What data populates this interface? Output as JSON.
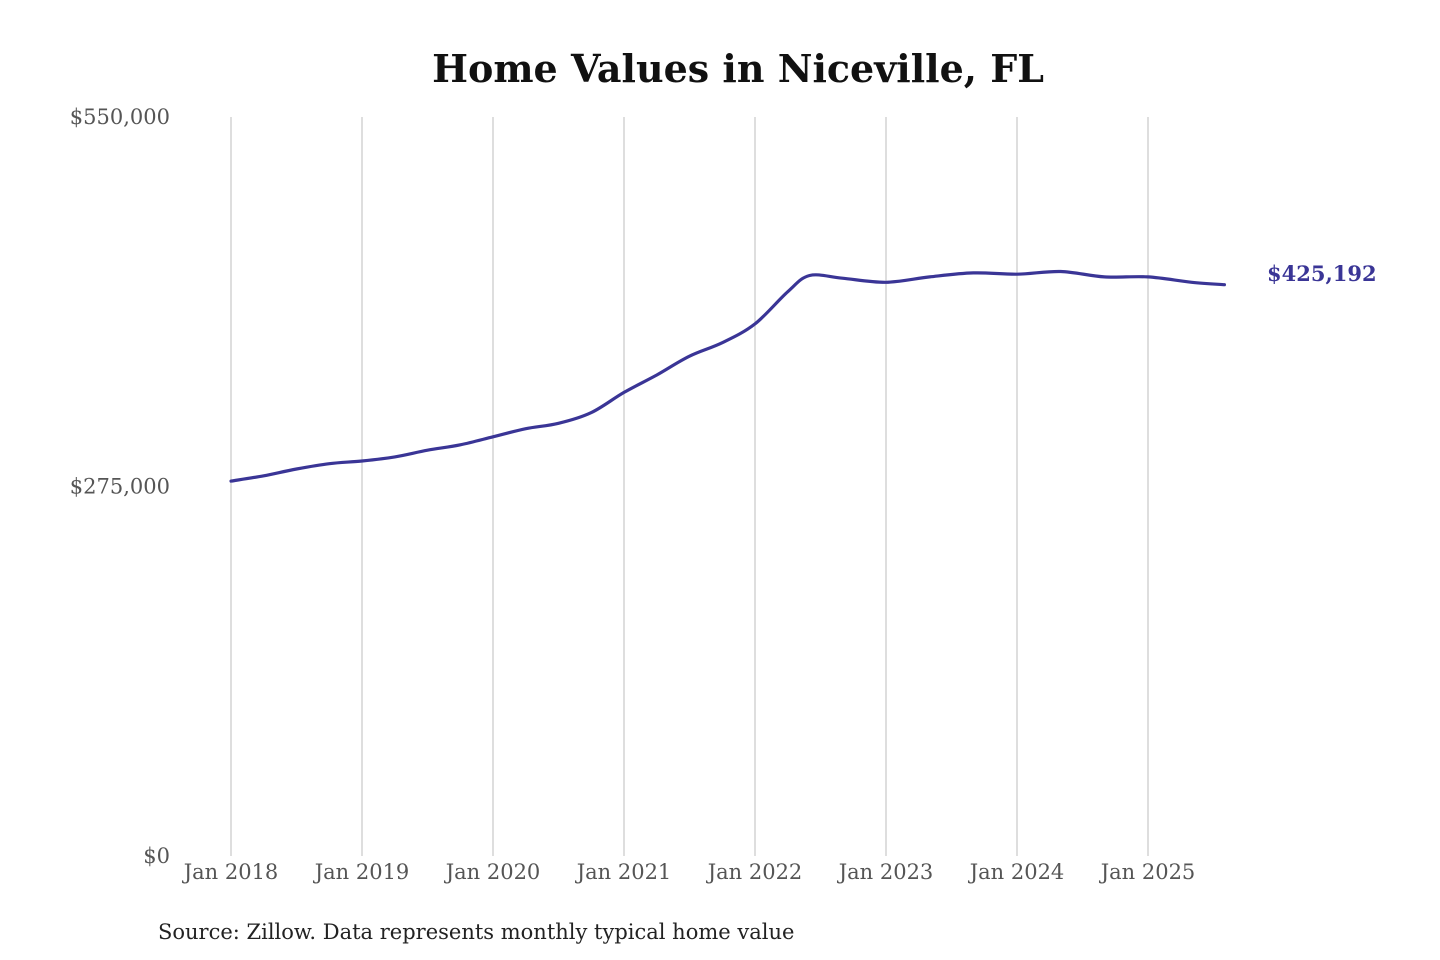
{
  "chart_data": {
    "type": "line",
    "title": "Home Values in Niceville, FL",
    "xlabel": "",
    "ylabel": "",
    "ylim": [
      0,
      550000
    ],
    "y_ticks": [
      {
        "value": 0,
        "label": "$0"
      },
      {
        "value": 275000,
        "label": "$275,000"
      },
      {
        "value": 550000,
        "label": "$550,000"
      }
    ],
    "x_ticks": [
      {
        "value": "2018-01",
        "label": "Jan 2018"
      },
      {
        "value": "2019-01",
        "label": "Jan 2019"
      },
      {
        "value": "2020-01",
        "label": "Jan 2020"
      },
      {
        "value": "2021-01",
        "label": "Jan 2021"
      },
      {
        "value": "2022-01",
        "label": "Jan 2022"
      },
      {
        "value": "2023-01",
        "label": "Jan 2023"
      },
      {
        "value": "2024-01",
        "label": "Jan 2024"
      },
      {
        "value": "2025-01",
        "label": "Jan 2025"
      }
    ],
    "grid": {
      "vertical": true,
      "horizontal": false
    },
    "series": [
      {
        "color": "#3a3596",
        "end_label": "$425,192",
        "points": [
          {
            "x": "2018-01",
            "y": 279000
          },
          {
            "x": "2018-04",
            "y": 283000
          },
          {
            "x": "2018-07",
            "y": 288000
          },
          {
            "x": "2018-10",
            "y": 292000
          },
          {
            "x": "2019-01",
            "y": 294000
          },
          {
            "x": "2019-04",
            "y": 297000
          },
          {
            "x": "2019-07",
            "y": 302000
          },
          {
            "x": "2019-10",
            "y": 306000
          },
          {
            "x": "2020-01",
            "y": 312000
          },
          {
            "x": "2020-04",
            "y": 318000
          },
          {
            "x": "2020-07",
            "y": 322000
          },
          {
            "x": "2020-10",
            "y": 330000
          },
          {
            "x": "2021-01",
            "y": 345000
          },
          {
            "x": "2021-04",
            "y": 358000
          },
          {
            "x": "2021-07",
            "y": 372000
          },
          {
            "x": "2021-10",
            "y": 382000
          },
          {
            "x": "2022-01",
            "y": 396000
          },
          {
            "x": "2022-04",
            "y": 420000
          },
          {
            "x": "2022-06",
            "y": 432000
          },
          {
            "x": "2022-09",
            "y": 430000
          },
          {
            "x": "2023-01",
            "y": 427000
          },
          {
            "x": "2023-05",
            "y": 431000
          },
          {
            "x": "2023-09",
            "y": 434000
          },
          {
            "x": "2024-01",
            "y": 433000
          },
          {
            "x": "2024-05",
            "y": 435000
          },
          {
            "x": "2024-09",
            "y": 431000
          },
          {
            "x": "2025-01",
            "y": 431000
          },
          {
            "x": "2025-05",
            "y": 427000
          },
          {
            "x": "2025-08",
            "y": 425192
          }
        ]
      }
    ],
    "source": "Source: Zillow. Data represents monthly typical home value"
  }
}
